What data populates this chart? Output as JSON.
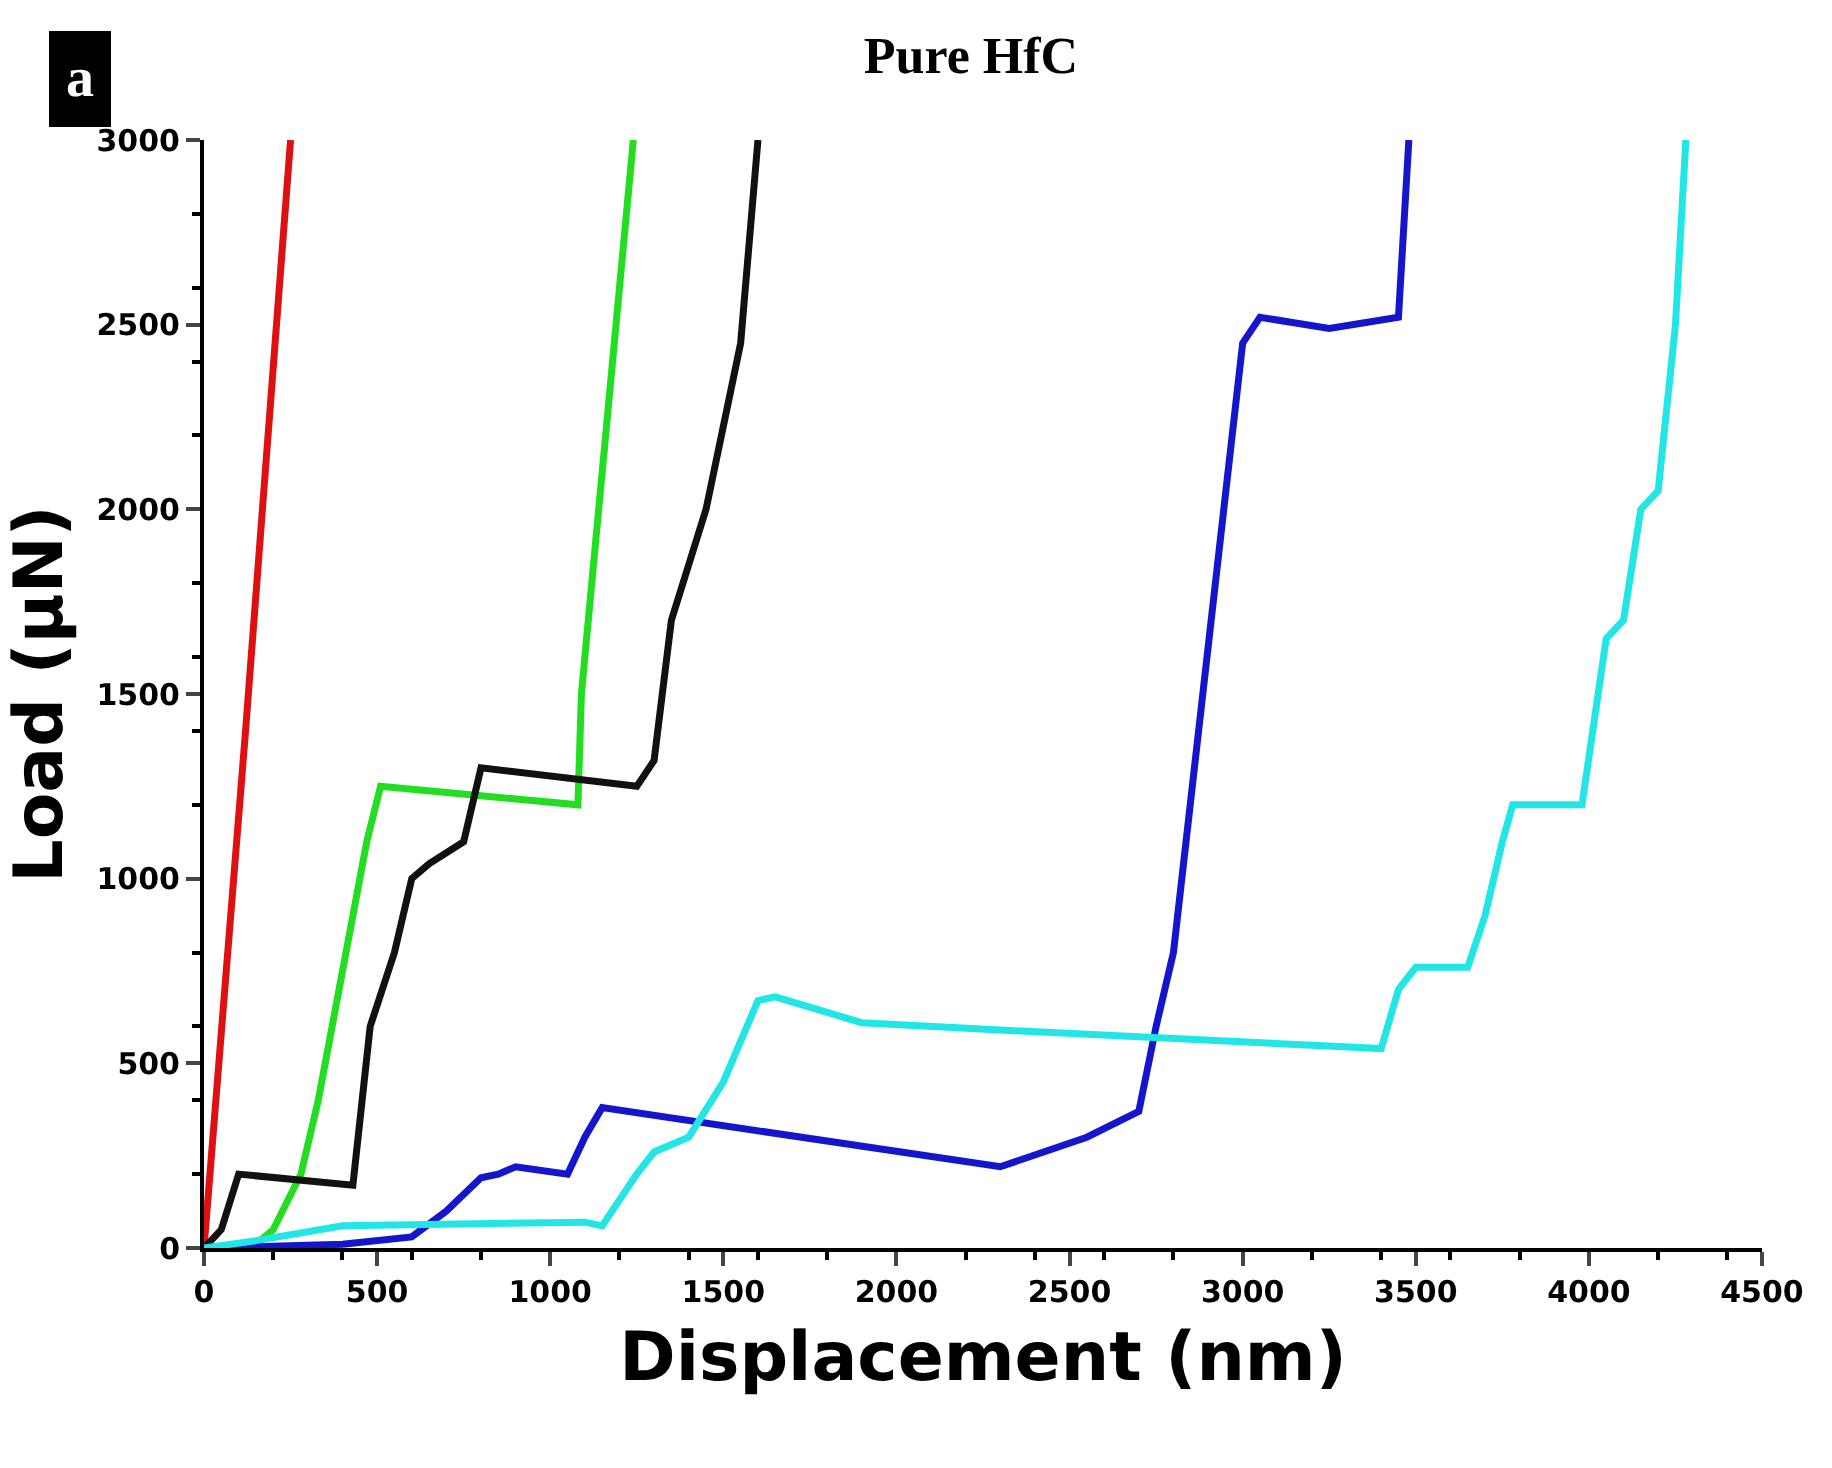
{
  "chart_data": {
    "type": "line",
    "title": "Pure HfC",
    "xlabel": "Displacement (nm)",
    "ylabel": "Load (μN)",
    "annotations": [
      "a"
    ],
    "xlim": [
      0,
      4500
    ],
    "ylim": [
      0,
      3000
    ],
    "xticks": [
      0,
      500,
      1000,
      1500,
      2000,
      2500,
      3000,
      3500,
      4000,
      4500
    ],
    "yticks": [
      0,
      500,
      1000,
      1500,
      2000,
      2500,
      3000
    ],
    "marker": "none",
    "line_style": "solid",
    "series": [
      {
        "color": "#dd1111",
        "x": [
          0,
          120,
          250
        ],
        "values": [
          0,
          1400,
          3000
        ]
      },
      {
        "color": "#22dd22",
        "x": [
          0,
          150,
          200,
          280,
          330,
          430,
          470,
          510,
          1080,
          1090,
          1240
        ],
        "values": [
          0,
          10,
          50,
          200,
          400,
          900,
          1100,
          1250,
          1200,
          1500,
          3000
        ]
      },
      {
        "color": "#111111",
        "x": [
          0,
          50,
          100,
          430,
          480,
          550,
          600,
          650,
          750,
          800,
          1250,
          1300,
          1350,
          1400,
          1450,
          1550,
          1600
        ],
        "values": [
          0,
          50,
          200,
          170,
          600,
          800,
          1000,
          1040,
          1100,
          1300,
          1250,
          1320,
          1700,
          1850,
          2000,
          2450,
          3000
        ]
      },
      {
        "color": "#1515cc",
        "x": [
          0,
          400,
          600,
          700,
          800,
          850,
          900,
          1050,
          1100,
          1150,
          2300,
          2550,
          2700,
          2750,
          2800,
          3000,
          3050,
          3250,
          3450,
          3480
        ],
        "values": [
          0,
          10,
          30,
          100,
          190,
          200,
          220,
          200,
          300,
          380,
          220,
          300,
          370,
          600,
          800,
          2450,
          2520,
          2490,
          2520,
          3000
        ]
      },
      {
        "color": "#22e5e5",
        "x": [
          0,
          150,
          400,
          1100,
          1150,
          1250,
          1300,
          1400,
          1500,
          1600,
          1650,
          1900,
          2300,
          3400,
          3450,
          3500,
          3650,
          3700,
          3750,
          3780,
          3980,
          4050,
          4100,
          4150,
          4200,
          4250,
          4280
        ],
        "values": [
          0,
          20,
          60,
          70,
          60,
          200,
          260,
          300,
          450,
          670,
          680,
          610,
          590,
          540,
          700,
          760,
          760,
          900,
          1100,
          1200,
          1200,
          1650,
          1700,
          2000,
          2050,
          2500,
          3000
        ]
      }
    ]
  }
}
